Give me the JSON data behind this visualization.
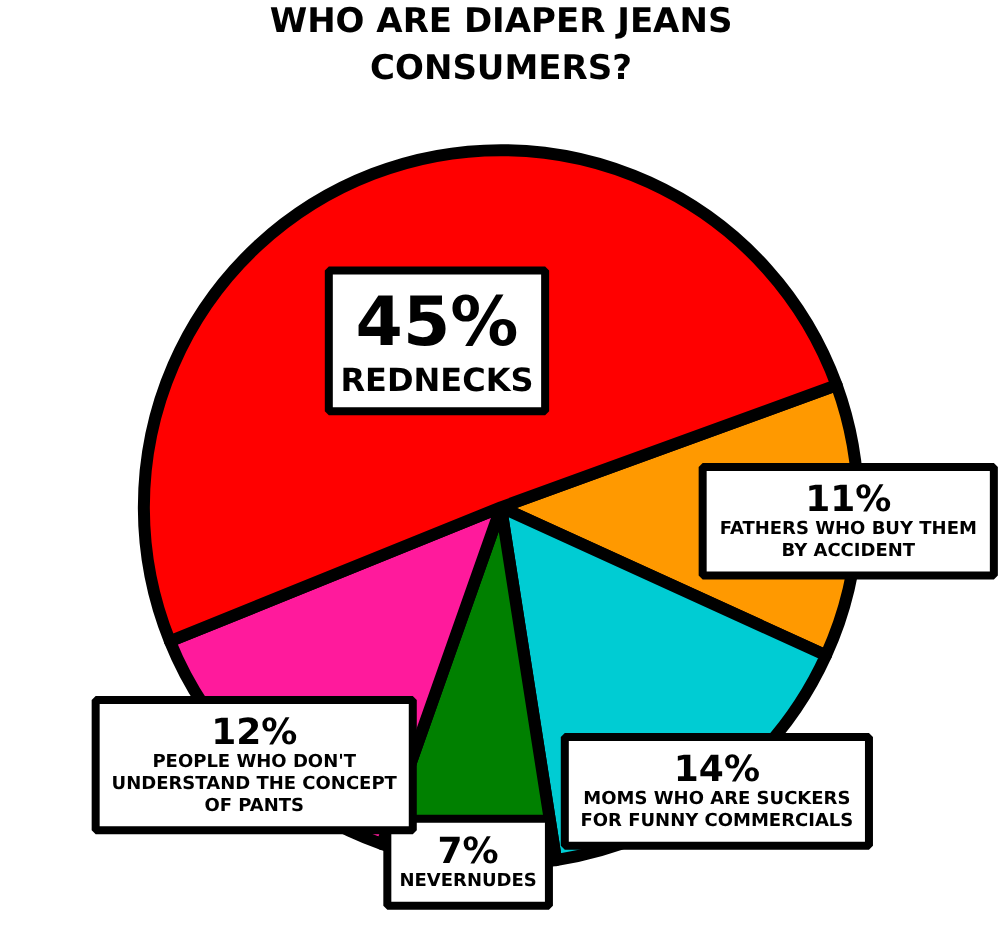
{
  "chart_data": {
    "type": "pie",
    "title": "WHO ARE DIAPER JEANS CONSUMERS?",
    "categories": [
      "FATHERS WHO BUY THEM BY ACCIDENT",
      "MOMS WHO ARE SUCKERS FOR FUNNY COMMERCIALS",
      "NEVERNUDES",
      "PEOPLE WHO DON'T UNDERSTAND THE CONCEPT OF PANTS",
      "REDNECKS"
    ],
    "values": [
      11,
      14,
      7,
      12,
      45
    ],
    "value_labels": [
      "11%",
      "14%",
      "7%",
      "12%",
      "45%"
    ],
    "colors": [
      "#ff9900",
      "#00ccd3",
      "#008000",
      "#ff1a9c",
      "#ff0000"
    ]
  }
}
